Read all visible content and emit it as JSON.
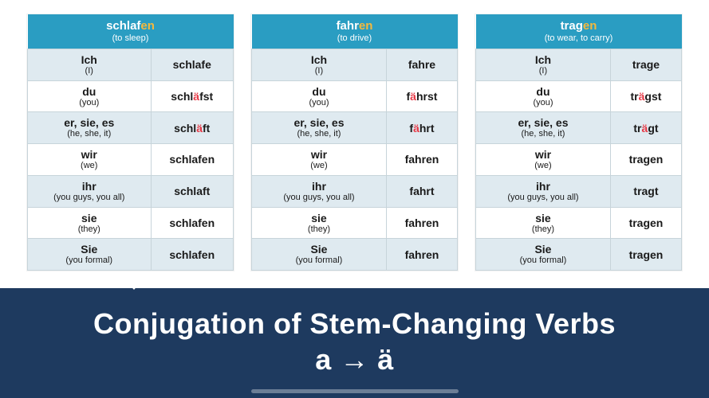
{
  "colors": {
    "header_bg": "#2a9dc2",
    "header_text": "#ffffff",
    "ending_color": "#f5b93d",
    "row_odd_bg": "#dfeaf0",
    "row_even_bg": "#ffffff",
    "cell_border": "#c7d4da",
    "highlight_letter": "#e63946",
    "footer_bg": "#1e3a5f",
    "footer_text": "#ffffff"
  },
  "typography": {
    "base_family": "Century Gothic",
    "header_stem_size": 15,
    "header_gloss_size": 11,
    "cell_size": 14,
    "cell_gloss_size": 11,
    "footer_title_size": 36
  },
  "pronouns": [
    {
      "main": "Ich",
      "gloss": "(I)"
    },
    {
      "main": "du",
      "gloss": "(you)"
    },
    {
      "main": "er, sie, es",
      "gloss": "(he, she, it)"
    },
    {
      "main": "wir",
      "gloss": "(we)"
    },
    {
      "main": "ihr",
      "gloss": "(you guys, you all)"
    },
    {
      "main": "sie",
      "gloss": "(they)"
    },
    {
      "main": "Sie",
      "gloss": "(you formal)"
    }
  ],
  "verbs": [
    {
      "stem": "schlaf",
      "ending": "en",
      "gloss": "(to sleep)",
      "forms": [
        {
          "pre": "schlafe",
          "hl": "",
          "post": ""
        },
        {
          "pre": "schl",
          "hl": "ä",
          "post": "fst"
        },
        {
          "pre": "schl",
          "hl": "ä",
          "post": "ft"
        },
        {
          "pre": "schlafen",
          "hl": "",
          "post": ""
        },
        {
          "pre": "schlaft",
          "hl": "",
          "post": ""
        },
        {
          "pre": "schlafen",
          "hl": "",
          "post": ""
        },
        {
          "pre": "schlafen",
          "hl": "",
          "post": ""
        }
      ]
    },
    {
      "stem": "fahr",
      "ending": "en",
      "gloss": "(to drive)",
      "forms": [
        {
          "pre": "fahre",
          "hl": "",
          "post": ""
        },
        {
          "pre": "f",
          "hl": "ä",
          "post": "hrst"
        },
        {
          "pre": "f",
          "hl": "ä",
          "post": "hrt"
        },
        {
          "pre": "fahren",
          "hl": "",
          "post": ""
        },
        {
          "pre": "fahrt",
          "hl": "",
          "post": ""
        },
        {
          "pre": "fahren",
          "hl": "",
          "post": ""
        },
        {
          "pre": "fahren",
          "hl": "",
          "post": ""
        }
      ]
    },
    {
      "stem": "trag",
      "ending": "en",
      "gloss": "(to wear, to carry)",
      "forms": [
        {
          "pre": "trage",
          "hl": "",
          "post": ""
        },
        {
          "pre": "tr",
          "hl": "ä",
          "post": "gst"
        },
        {
          "pre": "tr",
          "hl": "ä",
          "post": "gt"
        },
        {
          "pre": "tragen",
          "hl": "",
          "post": ""
        },
        {
          "pre": "tragt",
          "hl": "",
          "post": ""
        },
        {
          "pre": "tragen",
          "hl": "",
          "post": ""
        },
        {
          "pre": "tragen",
          "hl": "",
          "post": ""
        }
      ]
    }
  ],
  "footer": {
    "line1": "Conjugation of Stem-Changing Verbs",
    "from": "a",
    "arrow": "→",
    "to": "ä"
  }
}
